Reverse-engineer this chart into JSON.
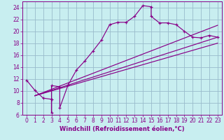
{
  "xlabel": "Windchill (Refroidissement éolien,°C)",
  "bg_color": "#c8eef0",
  "line_color": "#880088",
  "grid_color": "#99bbcc",
  "xlim": [
    -0.5,
    23.5
  ],
  "ylim": [
    6,
    25
  ],
  "xticks": [
    0,
    1,
    2,
    3,
    4,
    5,
    6,
    7,
    8,
    9,
    10,
    11,
    12,
    13,
    14,
    15,
    16,
    17,
    18,
    19,
    20,
    21,
    22,
    23
  ],
  "yticks": [
    6,
    8,
    10,
    12,
    14,
    16,
    18,
    20,
    22,
    24
  ],
  "main_line_x": [
    0,
    1,
    2,
    3,
    3,
    3,
    4,
    4,
    5,
    6,
    7,
    8,
    9,
    10,
    11,
    12,
    13,
    14,
    15,
    15,
    16,
    17,
    18,
    19,
    20,
    21,
    22,
    23
  ],
  "main_line_y": [
    11.8,
    10.1,
    8.8,
    8.6,
    6.4,
    10.9,
    10.7,
    7.2,
    11.0,
    13.5,
    15.0,
    16.7,
    18.5,
    21.1,
    21.5,
    21.5,
    22.5,
    24.3,
    24.1,
    22.5,
    21.4,
    21.4,
    21.1,
    20.0,
    19.0,
    18.9,
    19.3,
    19.0
  ],
  "diag_line1_x": [
    1,
    23
  ],
  "diag_line1_y": [
    9.2,
    21.0
  ],
  "diag_line2_x": [
    1,
    23
  ],
  "diag_line2_y": [
    9.2,
    19.0
  ],
  "diag_line3_x": [
    1,
    23
  ],
  "diag_line3_y": [
    9.2,
    18.0
  ],
  "xlabel_fontsize": 6,
  "tick_fontsize": 5.5
}
